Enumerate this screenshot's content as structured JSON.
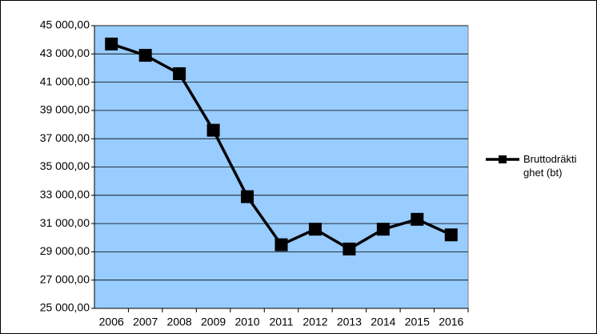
{
  "chart_data": {
    "type": "line",
    "categories": [
      "2006",
      "2007",
      "2008",
      "2009",
      "2010",
      "2011",
      "2012",
      "2013",
      "2014",
      "2015",
      "2016"
    ],
    "series": [
      {
        "name": "Bruttodräktighet (bt)",
        "color": "#000000",
        "values": [
          43700,
          42900,
          41600,
          37600,
          32900,
          29500,
          30600,
          29200,
          30600,
          31300,
          30200
        ]
      }
    ],
    "ylim": [
      25000,
      45000
    ],
    "yticks": [
      {
        "value": 25000,
        "label": "25 000,00"
      },
      {
        "value": 27000,
        "label": "27 000,00"
      },
      {
        "value": 29000,
        "label": "29 000,00"
      },
      {
        "value": 31000,
        "label": "31 000,00"
      },
      {
        "value": 33000,
        "label": "33 000,00"
      },
      {
        "value": 35000,
        "label": "35 000,00"
      },
      {
        "value": 37000,
        "label": "37 000,00"
      },
      {
        "value": 39000,
        "label": "39 000,00"
      },
      {
        "value": 41000,
        "label": "41 000,00"
      },
      {
        "value": 43000,
        "label": "43 000,00"
      },
      {
        "value": 45000,
        "label": "45 000,00"
      }
    ],
    "grid": true,
    "plot_background": "#99ccff",
    "legend": "right"
  }
}
